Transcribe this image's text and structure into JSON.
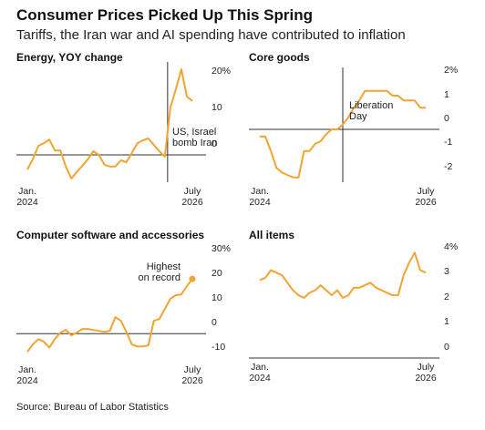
{
  "title": "Consumer Prices Picked Up This Spring",
  "subtitle": "Tariffs, the Iran war and AI spending have contributed to inflation",
  "source": "Source: Bureau of Labor Statistics",
  "chart_data": [
    {
      "type": "line",
      "title": "Energy, YOY change",
      "categories": [
        "Jan.\n2024",
        null,
        null,
        null,
        null,
        null,
        null,
        null,
        null,
        null,
        null,
        null,
        null,
        null,
        null,
        null,
        null,
        null,
        null,
        null,
        null,
        null,
        null,
        null,
        null,
        null,
        null,
        null,
        null,
        null,
        "July\n2026"
      ],
      "values": [
        -4,
        -1.2,
        2.5,
        3.2,
        4.2,
        1.2,
        1.2,
        -3.2,
        -6.5,
        -4.7,
        -3,
        -1.2,
        1,
        0,
        -2.7,
        -3.2,
        -3.2,
        -1.5,
        -2,
        0.5,
        3.2,
        4,
        4.5,
        2.7,
        1,
        -0.5,
        13,
        18,
        23.5,
        16,
        14.8
      ],
      "color": "#f2a431",
      "ylim": [
        -7.5,
        25
      ],
      "yticks": [
        0,
        10,
        {
          "value": 20,
          "label": "20%"
        }
      ],
      "grid": false,
      "annotation": "US, Israel\nbomb Iran"
    },
    {
      "type": "line",
      "title": "Core goods",
      "categories": [
        "Jan.\n2024",
        null,
        null,
        null,
        null,
        null,
        null,
        null,
        null,
        null,
        null,
        null,
        null,
        null,
        null,
        null,
        null,
        null,
        null,
        null,
        null,
        null,
        null,
        null,
        null,
        null,
        null,
        null,
        null,
        null,
        "July\n2026"
      ],
      "values": [
        -0.3,
        -0.3,
        -0.9,
        -1.6,
        -1.8,
        -1.9,
        -2,
        -2,
        -0.9,
        -0.9,
        -0.6,
        -0.5,
        -0.2,
        0,
        0,
        0.2,
        0.5,
        0.9,
        1.2,
        1.6,
        1.6,
        1.6,
        1.6,
        1.6,
        1.4,
        1.4,
        1.2,
        1.2,
        1.2,
        0.9,
        0.9
      ],
      "color": "#f2a431",
      "ylim": [
        -2.2,
        2.5
      ],
      "yticks": [
        -2,
        -1,
        0,
        1,
        {
          "value": 2,
          "label": "2%"
        }
      ],
      "grid": false,
      "annotation": "Liberation\nDay"
    },
    {
      "type": "line",
      "title": "Computer software and accessories",
      "categories": [
        "Jan.\n2024",
        null,
        null,
        null,
        null,
        null,
        null,
        null,
        null,
        null,
        null,
        null,
        null,
        null,
        null,
        null,
        null,
        null,
        null,
        null,
        null,
        null,
        null,
        null,
        null,
        null,
        null,
        null,
        null,
        null,
        "July\n2026"
      ],
      "values": [
        -7.4,
        -4.4,
        -2.2,
        -3.3,
        -5.6,
        -2.2,
        0.4,
        1.5,
        -0.7,
        0.4,
        1.9,
        1.9,
        1.5,
        1.1,
        0.7,
        1.1,
        6.7,
        5.2,
        0.7,
        -4.4,
        -5.2,
        -5.2,
        -4.8,
        5.2,
        5.9,
        10,
        14.1,
        15.6,
        15.9,
        19.3,
        22.2
      ],
      "color": "#f2a431",
      "ylim": [
        -11,
        30
      ],
      "yticks": [
        -10,
        0,
        10,
        20,
        {
          "value": 30,
          "label": "30%"
        }
      ],
      "grid": false,
      "annotation": "Highest\non record",
      "highlight_last": true
    },
    {
      "type": "line",
      "title": "All items",
      "categories": [
        "Jan.\n2024",
        null,
        null,
        null,
        null,
        null,
        null,
        null,
        null,
        null,
        null,
        null,
        null,
        null,
        null,
        null,
        null,
        null,
        null,
        null,
        null,
        null,
        null,
        null,
        null,
        null,
        null,
        null,
        null,
        null,
        "July\n2026"
      ],
      "values": [
        3.1,
        3.2,
        3.5,
        3.4,
        3.3,
        3,
        2.7,
        2.5,
        2.4,
        2.6,
        2.7,
        2.9,
        2.7,
        2.5,
        2.7,
        2.4,
        2.5,
        2.8,
        2.8,
        2.9,
        3,
        2.8,
        2.7,
        2.6,
        2.5,
        2.5,
        3.3,
        3.8,
        4.2,
        3.5,
        3.4
      ],
      "color": "#f2a431",
      "ylim": [
        0,
        4.5
      ],
      "yticks": [
        0,
        1,
        2,
        3,
        {
          "value": 4,
          "label": "4%"
        }
      ],
      "grid": false
    }
  ]
}
